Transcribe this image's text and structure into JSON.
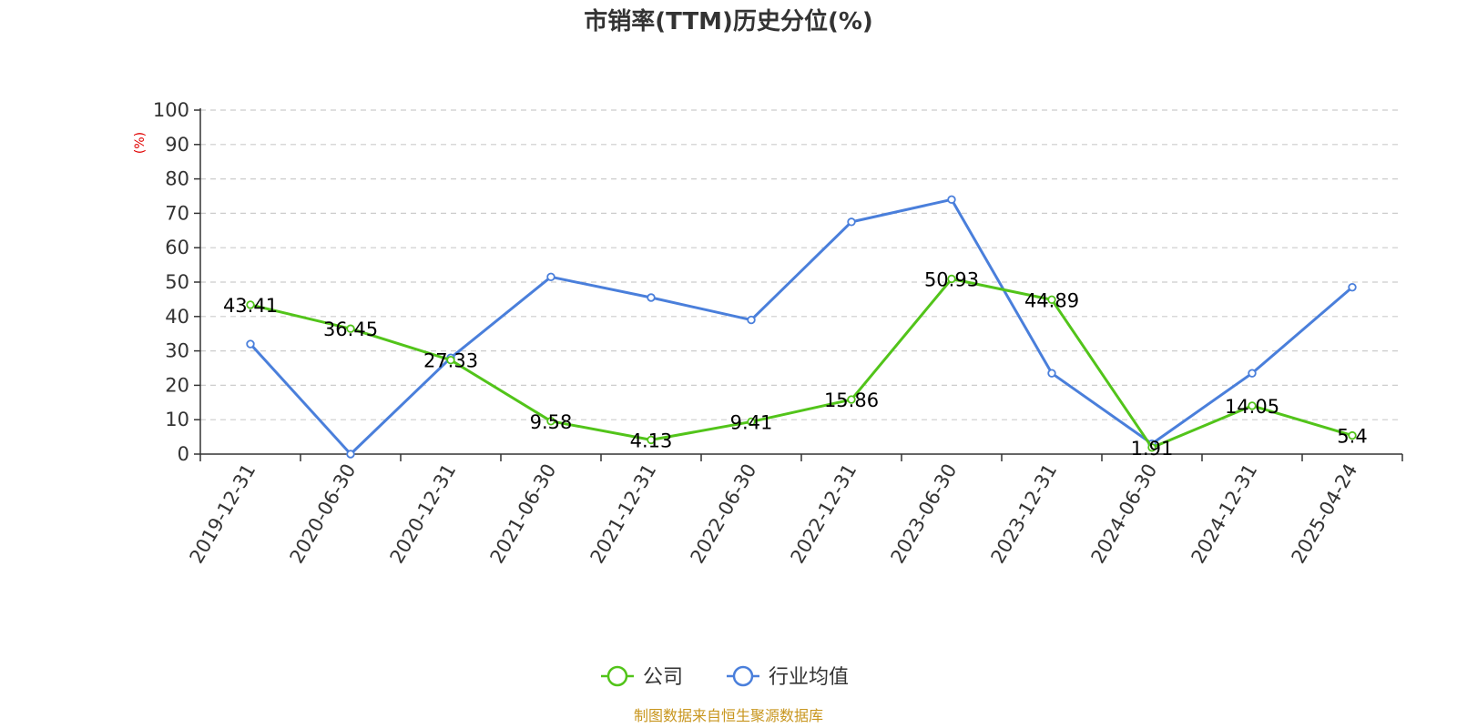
{
  "chart_data": {
    "type": "line",
    "title": "市销率(TTM)历史分位(%)",
    "ylabel": "(%)",
    "xlabel": "",
    "ylim": [
      0,
      100
    ],
    "yticks": [
      0,
      10,
      20,
      30,
      40,
      50,
      60,
      70,
      80,
      90,
      100
    ],
    "grid": true,
    "legend_position": "bottom",
    "categories": [
      "2019-12-31",
      "2020-06-30",
      "2020-12-31",
      "2021-06-30",
      "2021-12-31",
      "2022-06-30",
      "2022-12-31",
      "2023-06-30",
      "2023-12-31",
      "2024-06-30",
      "2024-12-31",
      "2025-04-24"
    ],
    "series": [
      {
        "name": "公司",
        "color": "#52c41a",
        "values": [
          43.41,
          36.45,
          27.33,
          9.58,
          4.13,
          9.41,
          15.86,
          50.93,
          44.89,
          1.91,
          14.05,
          5.4
        ],
        "labels": [
          "43.41",
          "36.45",
          "27.33",
          "9.58",
          "4.13",
          "9.41",
          "15.86",
          "50.93",
          "44.89",
          "1.91",
          "14.05",
          "5.4"
        ]
      },
      {
        "name": "行业均值",
        "color": "#4a7fdb",
        "values": [
          32,
          0,
          28,
          51.5,
          45.5,
          39,
          67.5,
          74,
          23.5,
          3,
          23.5,
          48.5
        ]
      }
    ]
  },
  "source": "制图数据来自恒生聚源数据库"
}
